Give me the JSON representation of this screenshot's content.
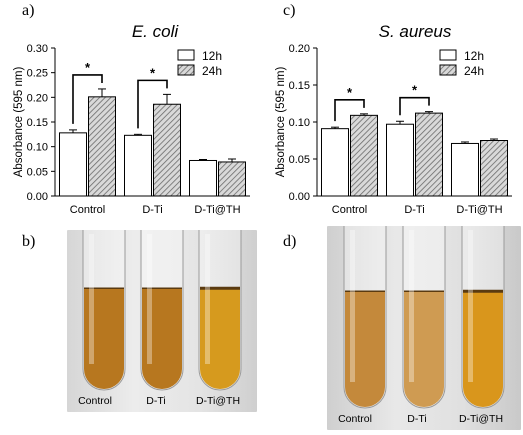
{
  "panels": {
    "a": "a)",
    "b": "b)",
    "c": "c)",
    "d": "d)"
  },
  "chart_data": [
    {
      "type": "bar",
      "title": "E. coli",
      "xlabel": "",
      "ylabel": "Absorbance (595 nm)",
      "ylim": [
        0,
        0.3
      ],
      "yticks": [
        "0.00",
        "0.05",
        "0.10",
        "0.15",
        "0.20",
        "0.25",
        "0.30"
      ],
      "categories": [
        "Control",
        "D-Ti",
        "D-Ti@TH"
      ],
      "series": [
        {
          "name": "12h",
          "values": [
            0.128,
            0.123,
            0.072
          ],
          "errors": [
            0.006,
            0.002,
            0.002
          ],
          "pattern": "plain",
          "color": "#ffffff"
        },
        {
          "name": "24h",
          "values": [
            0.201,
            0.186,
            0.069
          ],
          "errors": [
            0.016,
            0.02,
            0.006
          ],
          "pattern": "hatch",
          "color": "#bdbdbd"
        }
      ],
      "significance": [
        {
          "category": "Control",
          "label": "*"
        },
        {
          "category": "D-Ti",
          "label": "*"
        }
      ],
      "legend": "top-right",
      "grid": false
    },
    {
      "type": "bar",
      "title": "S. aureus",
      "xlabel": "",
      "ylabel": "Absorbance (595 nm)",
      "ylim": [
        0,
        0.2
      ],
      "yticks": [
        "0.00",
        "0.05",
        "0.10",
        "0.15",
        "0.20"
      ],
      "categories": [
        "Control",
        "D-Ti",
        "D-Ti@TH"
      ],
      "series": [
        {
          "name": "12h",
          "values": [
            0.091,
            0.097,
            0.071
          ],
          "errors": [
            0.002,
            0.004,
            0.002
          ],
          "pattern": "plain",
          "color": "#ffffff"
        },
        {
          "name": "24h",
          "values": [
            0.109,
            0.112,
            0.075
          ],
          "errors": [
            0.002,
            0.002,
            0.002
          ],
          "pattern": "hatch",
          "color": "#bdbdbd"
        }
      ],
      "significance": [
        {
          "category": "Control",
          "label": "*"
        },
        {
          "category": "D-Ti",
          "label": "*"
        }
      ],
      "legend": "top-right",
      "grid": false
    }
  ],
  "photos": [
    {
      "panel": "b",
      "labels": [
        "Control",
        "D-Ti",
        "D-Ti@TH"
      ],
      "liquid_colors": [
        "#b7771f",
        "#b7771f",
        "#d69a1e"
      ]
    },
    {
      "panel": "d",
      "labels": [
        "Control",
        "D-Ti",
        "D-Ti@TH"
      ],
      "liquid_colors": [
        "#c4893b",
        "#cf9b52",
        "#d9961c"
      ]
    }
  ]
}
